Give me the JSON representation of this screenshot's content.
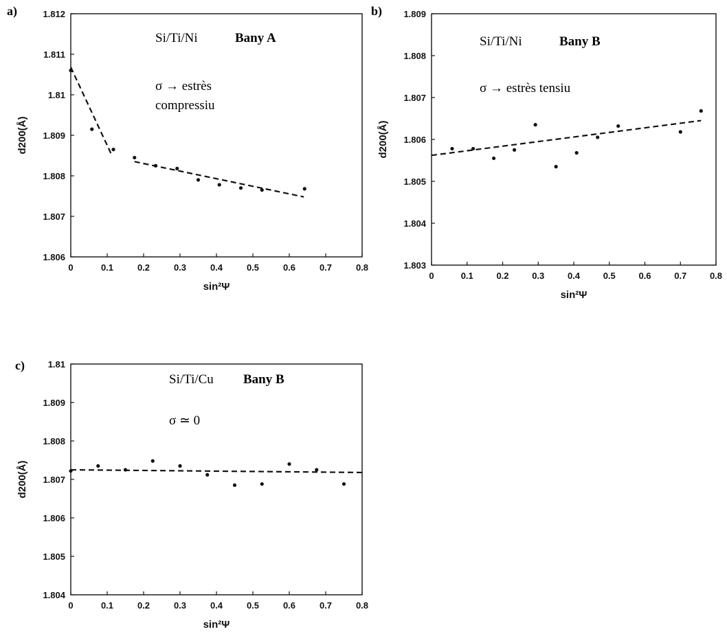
{
  "chart_data": [
    {
      "type": "scatter",
      "panel_label": "a)",
      "xlabel": "sin²Ψ",
      "ylabel": "d200(Å)",
      "xlim": [
        0,
        0.8
      ],
      "ylim": [
        1.806,
        1.812
      ],
      "x_ticks": [
        "0",
        "0.1",
        "0.2",
        "0.3",
        "0.4",
        "0.5",
        "0.6",
        "0.7",
        "0.8"
      ],
      "y_ticks": [
        "1.806",
        "1.807",
        "1.808",
        "1.809",
        "1.81",
        "1.811",
        "1.812"
      ],
      "annotations": {
        "sample": "Si/Ti/Ni",
        "bath": "Bany A",
        "line1": "σ → estrès",
        "line2": "compressiu"
      },
      "points": [
        {
          "x": 0.0,
          "y": 1.8106
        },
        {
          "x": 0.058,
          "y": 1.80915
        },
        {
          "x": 0.117,
          "y": 1.80865
        },
        {
          "x": 0.175,
          "y": 1.80845
        },
        {
          "x": 0.233,
          "y": 1.80825
        },
        {
          "x": 0.292,
          "y": 1.80818
        },
        {
          "x": 0.35,
          "y": 1.8079
        },
        {
          "x": 0.408,
          "y": 1.80778
        },
        {
          "x": 0.467,
          "y": 1.8077
        },
        {
          "x": 0.525,
          "y": 1.80765
        },
        {
          "x": 0.642,
          "y": 1.80768
        }
      ],
      "fit_lines": [
        {
          "x": [
            0.0,
            0.112
          ],
          "y": [
            1.81068,
            1.80852
          ]
        },
        {
          "x": [
            0.175,
            0.64
          ],
          "y": [
            1.80835,
            1.80748
          ]
        }
      ]
    },
    {
      "type": "scatter",
      "panel_label": "b)",
      "xlabel": "sin²Ψ",
      "ylabel": "d200(Å)",
      "xlim": [
        0,
        0.8
      ],
      "ylim": [
        1.803,
        1.809
      ],
      "x_ticks": [
        "0",
        "0.1",
        "0.2",
        "0.3",
        "0.4",
        "0.5",
        "0.6",
        "0.7",
        "0.8"
      ],
      "y_ticks": [
        "1.803",
        "1.804",
        "1.805",
        "1.806",
        "1.807",
        "1.808",
        "1.809"
      ],
      "annotations": {
        "sample": "Si/Ti/Ni",
        "bath": "Bany B",
        "line1": "σ → estrès tensiu"
      },
      "points": [
        {
          "x": 0.058,
          "y": 1.80578
        },
        {
          "x": 0.117,
          "y": 1.80578
        },
        {
          "x": 0.175,
          "y": 1.80555
        },
        {
          "x": 0.233,
          "y": 1.80575
        },
        {
          "x": 0.292,
          "y": 1.80635
        },
        {
          "x": 0.35,
          "y": 1.80535
        },
        {
          "x": 0.408,
          "y": 1.80568
        },
        {
          "x": 0.467,
          "y": 1.80605
        },
        {
          "x": 0.525,
          "y": 1.80632
        },
        {
          "x": 0.7,
          "y": 1.80618
        },
        {
          "x": 0.758,
          "y": 1.80668
        }
      ],
      "fit_lines": [
        {
          "x": [
            0.0,
            0.758
          ],
          "y": [
            1.80562,
            1.80645
          ]
        }
      ]
    },
    {
      "type": "scatter",
      "panel_label": "c)",
      "xlabel": "sin²Ψ",
      "ylabel": "d200(Å)",
      "xlim": [
        0,
        0.8
      ],
      "ylim": [
        1.804,
        1.81
      ],
      "x_ticks": [
        "0",
        "0.1",
        "0.2",
        "0.3",
        "0.4",
        "0.5",
        "0.6",
        "0.7",
        "0.8"
      ],
      "y_ticks": [
        "1.804",
        "1.805",
        "1.806",
        "1.807",
        "1.808",
        "1.809",
        "1.81"
      ],
      "annotations": {
        "sample": "Si/Ti/Cu",
        "bath": "Bany B",
        "line1": "σ ≃ 0"
      },
      "points": [
        {
          "x": 0.0,
          "y": 1.80722
        },
        {
          "x": 0.075,
          "y": 1.80735
        },
        {
          "x": 0.15,
          "y": 1.80725
        },
        {
          "x": 0.225,
          "y": 1.80748
        },
        {
          "x": 0.3,
          "y": 1.80735
        },
        {
          "x": 0.375,
          "y": 1.80712
        },
        {
          "x": 0.45,
          "y": 1.80685
        },
        {
          "x": 0.525,
          "y": 1.80688
        },
        {
          "x": 0.6,
          "y": 1.8074
        },
        {
          "x": 0.675,
          "y": 1.80725
        },
        {
          "x": 0.75,
          "y": 1.80688
        }
      ],
      "fit_lines": [
        {
          "x": [
            0.0,
            0.8
          ],
          "y": [
            1.80725,
            1.80718
          ]
        }
      ]
    }
  ]
}
